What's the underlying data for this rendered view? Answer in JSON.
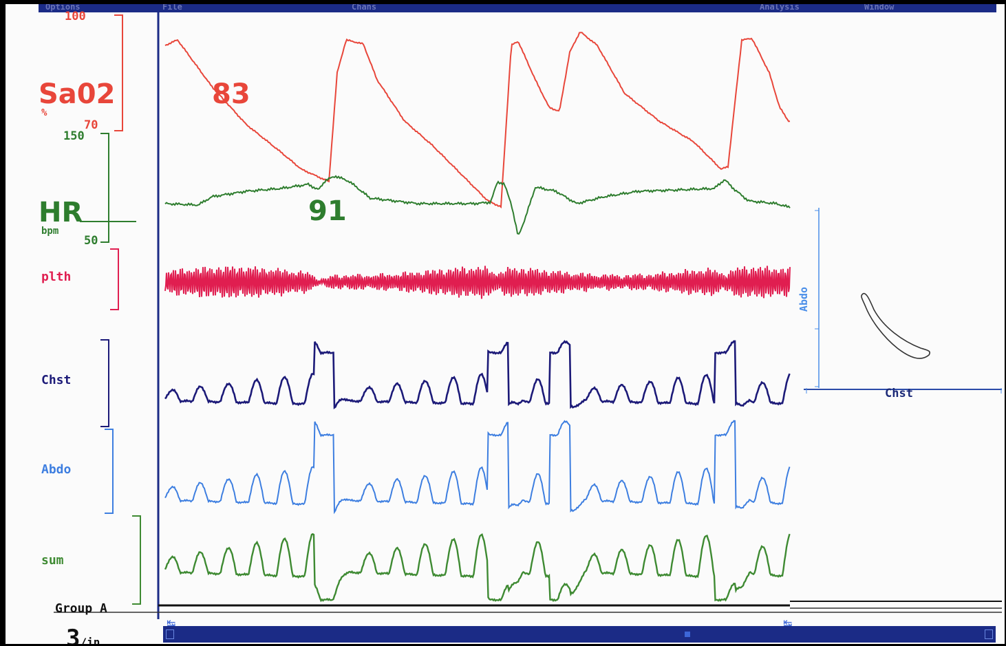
{
  "menubar": {
    "items": [
      "Options",
      "File",
      "Chans",
      "Analysis",
      "Window"
    ]
  },
  "channels": {
    "sao2": {
      "name": "Sa02",
      "unit": "%",
      "scale_max": "100",
      "scale_min": "70",
      "value": "83",
      "color": "#e8463a"
    },
    "hr": {
      "name": "HR",
      "unit": "bpm",
      "scale_max": "150",
      "scale_min": "50",
      "value": "91",
      "color": "#2e7d2e"
    },
    "pleth": {
      "name": "plth",
      "color": "#e01e50"
    },
    "chest": {
      "name": "Chst",
      "color": "#1c1a78"
    },
    "abdo": {
      "name": "Abdo",
      "color": "#3d7ee0"
    },
    "sum": {
      "name": "sum",
      "color": "#3e8a32"
    }
  },
  "events": {
    "label": "Group A"
  },
  "xy_plot": {
    "x_label": "Chst",
    "y_label": "Abdo"
  },
  "timebase": {
    "value": "3",
    "unit": "/in"
  }
}
